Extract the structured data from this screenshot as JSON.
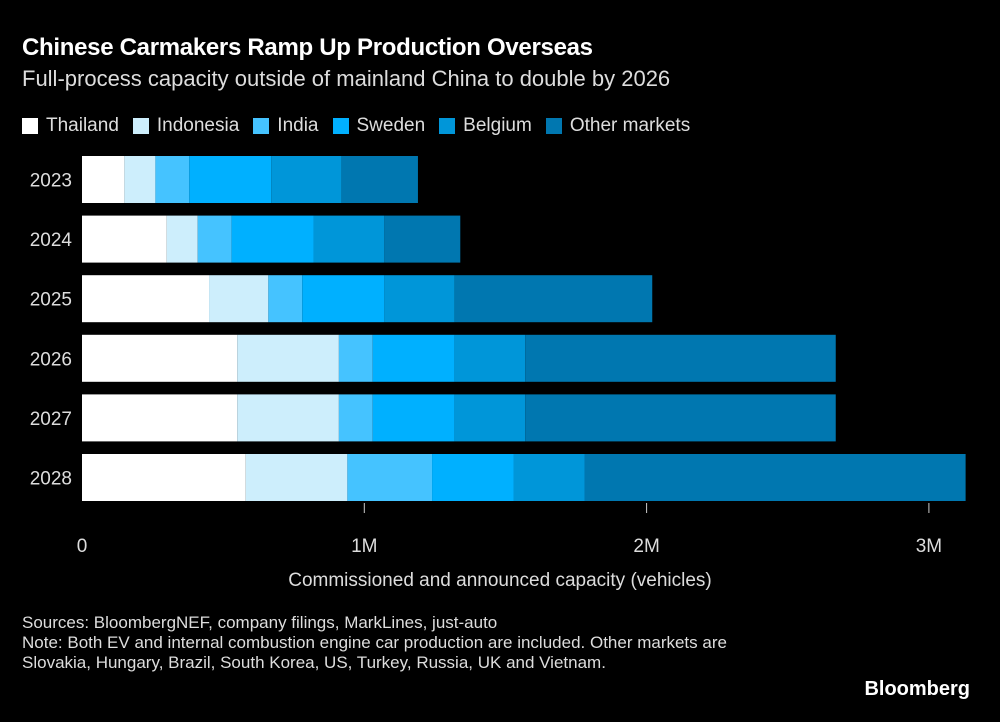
{
  "chart_data": {
    "type": "bar",
    "orientation": "horizontal",
    "stacked": true,
    "title": "Chinese Carmakers Ramp Up Production Overseas",
    "subtitle": "Full-process capacity outside of mainland China to double by 2026",
    "xlabel": "Commissioned and announced capacity (vehicles)",
    "xlim": [
      0,
      3150000
    ],
    "xticks": [
      0,
      1000000,
      2000000,
      3000000
    ],
    "xtick_labels": [
      "0",
      "1M",
      "2M",
      "3M"
    ],
    "legend_position": "top",
    "categories": [
      "2023",
      "2024",
      "2025",
      "2026",
      "2027",
      "2028"
    ],
    "series": [
      {
        "name": "Thailand",
        "color": "#ffffff",
        "values": [
          150000,
          300000,
          450000,
          550000,
          550000,
          580000
        ]
      },
      {
        "name": "Indonesia",
        "color": "#cdeefc",
        "values": [
          110000,
          110000,
          210000,
          360000,
          360000,
          360000
        ]
      },
      {
        "name": "India",
        "color": "#45c3ff",
        "values": [
          120000,
          120000,
          120000,
          120000,
          120000,
          300000
        ]
      },
      {
        "name": "Sweden",
        "color": "#00b0ff",
        "values": [
          290000,
          290000,
          290000,
          290000,
          290000,
          290000
        ]
      },
      {
        "name": "Belgium",
        "color": "#0096d9",
        "values": [
          250000,
          250000,
          250000,
          250000,
          250000,
          250000
        ]
      },
      {
        "name": "Other markets",
        "color": "#0077b0",
        "values": [
          270000,
          270000,
          700000,
          1100000,
          1100000,
          1350000
        ]
      }
    ]
  },
  "footer": {
    "sources": "Sources: BloombergNEF, company filings, MarkLines, just-auto",
    "note": "Note: Both EV and internal combustion engine car production are included. Other markets are Slovakia, Hungary, Brazil, South Korea, US, Turkey, Russia, UK and Vietnam.",
    "logo": "Bloomberg"
  }
}
